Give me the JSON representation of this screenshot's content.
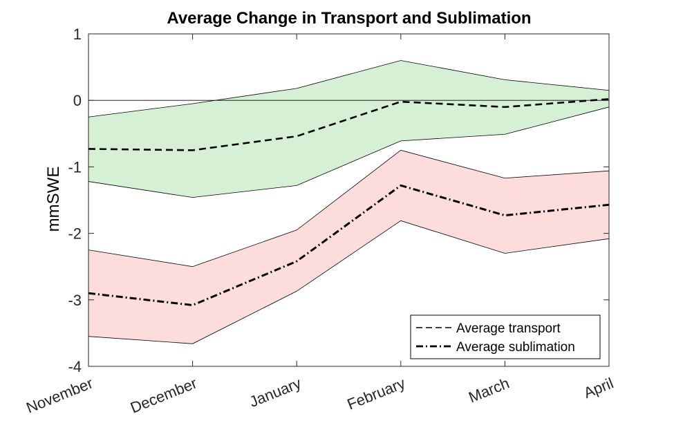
{
  "chart_data": {
    "type": "area",
    "title": "Average Change in Transport and Sublimation",
    "xlabel": "",
    "ylabel": "mmSWE",
    "categories": [
      "November",
      "December",
      "January",
      "February",
      "March",
      "April"
    ],
    "ylim": [
      -4,
      1
    ],
    "yticks": [
      1,
      0,
      -1,
      -2,
      -3,
      -4
    ],
    "grid": false,
    "zero_line": true,
    "legend_position": "bottom-right",
    "series": [
      {
        "name": "Average transport",
        "line_style": "dashed",
        "band_color": "#d6f0d6",
        "values": [
          -0.73,
          -0.75,
          -0.54,
          -0.02,
          -0.1,
          0.02
        ],
        "upper": [
          -0.25,
          -0.05,
          0.18,
          0.6,
          0.31,
          0.15
        ],
        "lower": [
          -1.22,
          -1.46,
          -1.28,
          -0.61,
          -0.51,
          -0.1
        ]
      },
      {
        "name": "Average sublimation",
        "line_style": "dash-dot",
        "band_color": "#fddcdc",
        "values": [
          -2.9,
          -3.08,
          -2.42,
          -1.28,
          -1.73,
          -1.57
        ],
        "upper": [
          -2.25,
          -2.5,
          -1.95,
          -0.75,
          -1.17,
          -1.06
        ],
        "lower": [
          -3.55,
          -3.66,
          -2.87,
          -1.81,
          -2.3,
          -2.08
        ]
      }
    ]
  }
}
